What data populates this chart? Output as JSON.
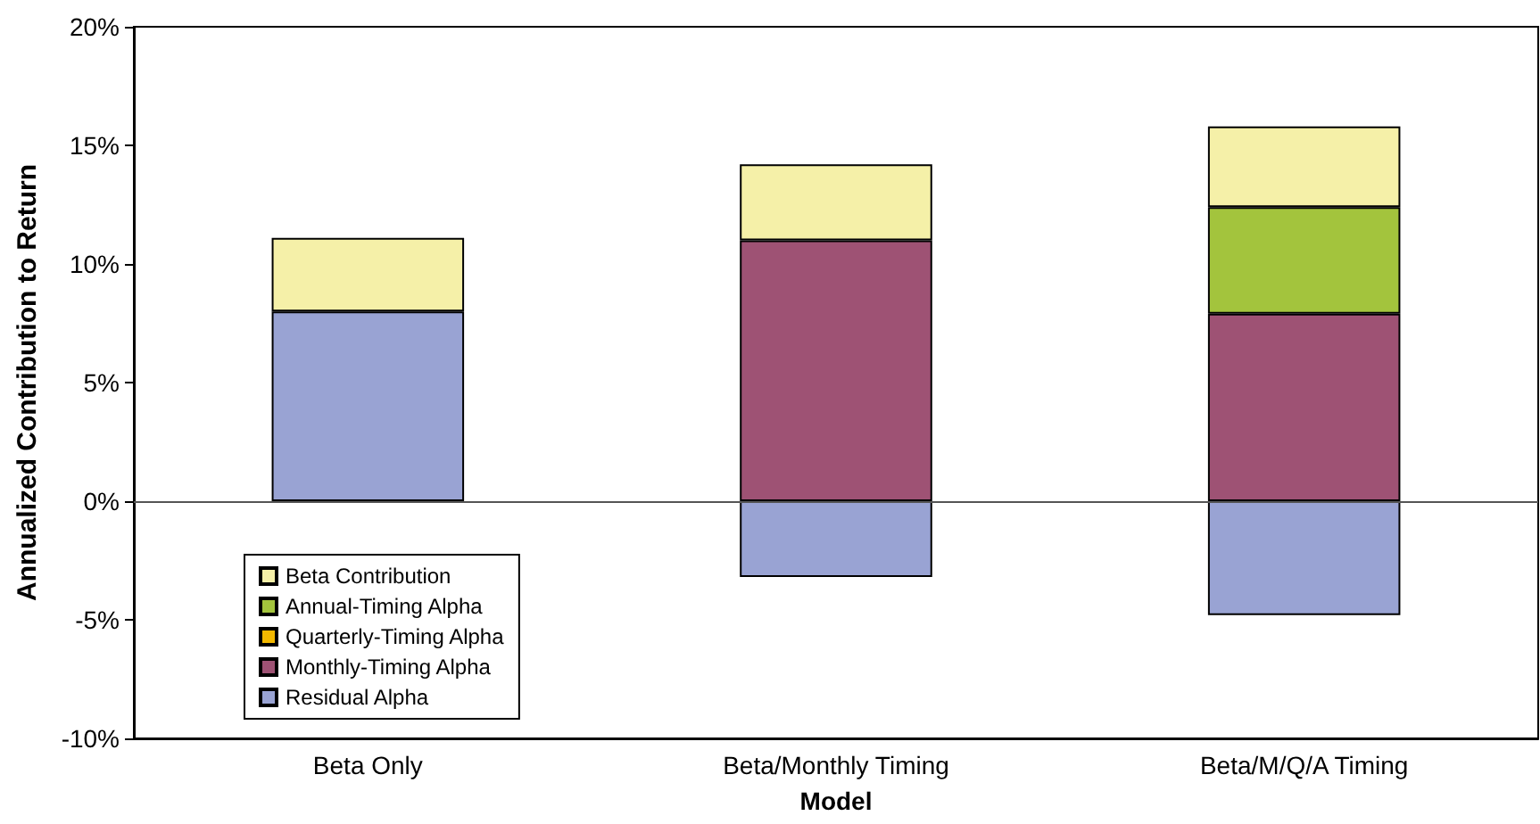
{
  "chart_data": {
    "type": "bar",
    "stacked": true,
    "xlabel": "Model",
    "ylabel": "Annualized Contribution to Return",
    "categories": [
      "Beta Only",
      "Beta/Monthly Timing",
      "Beta/M/Q/A Timing"
    ],
    "series": [
      {
        "name": "Residual Alpha",
        "color": "#99a3d3",
        "values": [
          8.0,
          -3.2,
          -4.8
        ]
      },
      {
        "name": "Monthly-Timing Alpha",
        "color": "#9e5274",
        "values": [
          null,
          11.0,
          7.9
        ]
      },
      {
        "name": "Quarterly-Timing Alpha",
        "color": "#f2b800",
        "values": [
          null,
          null,
          null
        ]
      },
      {
        "name": "Annual-Timing Alpha",
        "color": "#a3c43d",
        "values": [
          null,
          null,
          4.5
        ]
      },
      {
        "name": "Beta Contribution",
        "color": "#f5f0a8",
        "values": [
          3.1,
          3.2,
          3.4
        ]
      }
    ],
    "ylim": [
      -10,
      20
    ],
    "yticks": [
      {
        "value": -10,
        "label": "-10%"
      },
      {
        "value": -5,
        "label": "-5%"
      },
      {
        "value": 0,
        "label": "0%"
      },
      {
        "value": 5,
        "label": "5%"
      },
      {
        "value": 10,
        "label": "10%"
      },
      {
        "value": 15,
        "label": "15%"
      },
      {
        "value": 20,
        "label": "20%"
      }
    ],
    "ref_lines": [
      {
        "axis": "y",
        "value": 0,
        "color": "#555555"
      }
    ],
    "grid": false,
    "legend": "bottom left"
  }
}
